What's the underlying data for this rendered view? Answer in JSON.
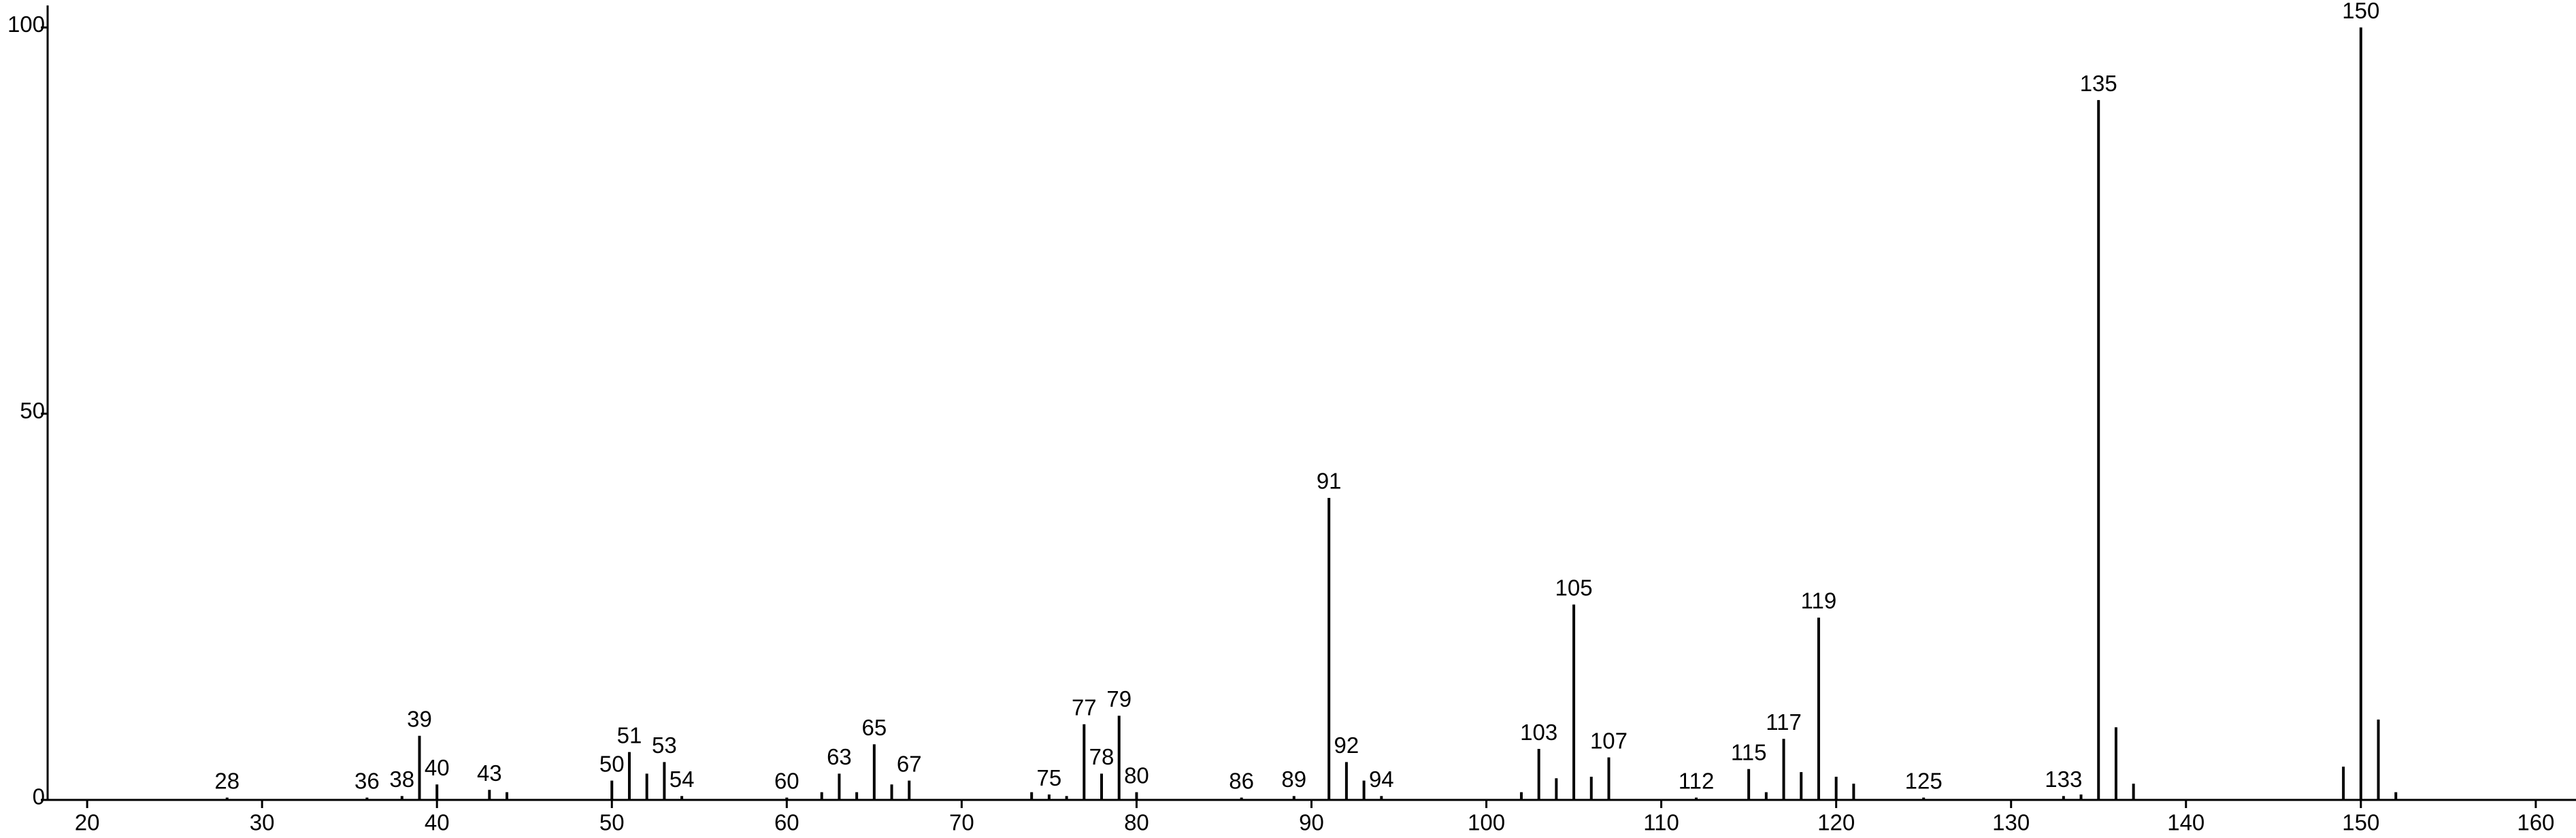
{
  "chart_data": {
    "type": "spectrum",
    "color": "#000000",
    "x": [
      28,
      36,
      38,
      39,
      40,
      43,
      44,
      50,
      51,
      52,
      53,
      54,
      60,
      62,
      63,
      64,
      65,
      66,
      67,
      74,
      75,
      76,
      77,
      78,
      79,
      80,
      86,
      89,
      91,
      92,
      93,
      94,
      102,
      103,
      104,
      105,
      106,
      107,
      112,
      115,
      116,
      117,
      118,
      119,
      120,
      121,
      125,
      133,
      134,
      135,
      136,
      137,
      149,
      150,
      151,
      152
    ],
    "values": [
      0.3,
      0.3,
      0.5,
      8.3,
      2,
      1.3,
      1,
      2.5,
      6.2,
      3.4,
      4.9,
      0.5,
      0.3,
      1,
      3.4,
      1,
      7.2,
      2,
      2.5,
      1,
      0.7,
      0.5,
      9.8,
      3.4,
      10.9,
      1,
      0.3,
      0.5,
      39.1,
      4.9,
      2.5,
      0.5,
      1,
      6.6,
      2.8,
      25.3,
      3,
      5.5,
      0.3,
      4,
      1,
      7.9,
      3.6,
      23.6,
      3,
      2.1,
      0.3,
      0.5,
      0.7,
      90.6,
      9.4,
      2.1,
      4.3,
      100,
      10.4,
      1
    ],
    "labels": [
      "28",
      "36",
      "38",
      "39",
      "40",
      "43",
      null,
      "50",
      "51",
      null,
      "53",
      "54",
      "60",
      null,
      "63",
      null,
      "65",
      null,
      "67",
      null,
      "75",
      null,
      "77",
      "78",
      "79",
      "80",
      "86",
      "89",
      "91",
      "92",
      null,
      "94",
      null,
      "103",
      null,
      "105",
      null,
      "107",
      "112",
      "115",
      null,
      "117",
      null,
      "119",
      null,
      null,
      "125",
      "133",
      null,
      "135",
      null,
      null,
      null,
      "150",
      null,
      null
    ],
    "xlim": [
      17.74,
      162.3
    ],
    "xticks": [
      20,
      30,
      40,
      50,
      60,
      70,
      80,
      90,
      100,
      110,
      120,
      130,
      140,
      150,
      160
    ],
    "ylim": [
      0,
      102.5
    ],
    "yticks": [
      0,
      50,
      100
    ]
  }
}
